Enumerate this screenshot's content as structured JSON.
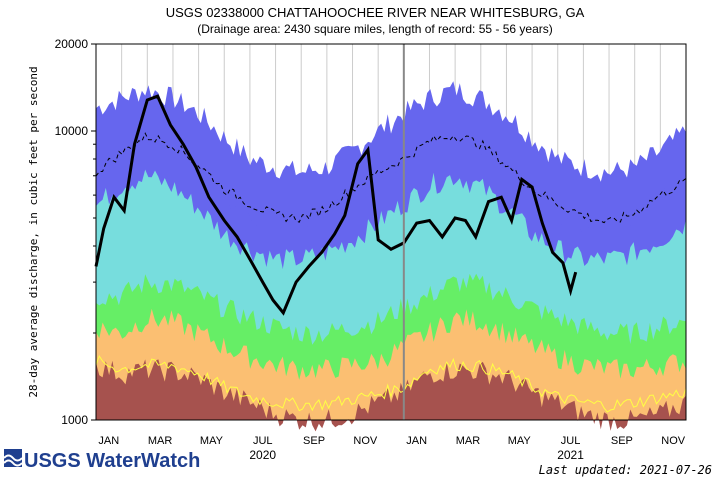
{
  "chart_data": {
    "type": "area",
    "title": "USGS 02338000 CHATTAHOOCHEE RIVER NEAR WHITESBURG, GA",
    "subtitle": "(Drainage area: 2430 square miles, length of record: 55 - 56 years)",
    "ylabel": "28-day average discharge, in cubic feet per second",
    "yscale": "log",
    "ylim": [
      1000,
      20000
    ],
    "y_ticks": [
      {
        "value": 1000,
        "label": "1000"
      },
      {
        "value": 10000,
        "label": "10000"
      },
      {
        "value": 20000,
        "label": "20000"
      }
    ],
    "x_range_months": [
      0,
      23
    ],
    "x_ticks": [
      {
        "label": "JAN",
        "pos": 0.5
      },
      {
        "label": "MAR",
        "pos": 2.5
      },
      {
        "label": "MAY",
        "pos": 4.5
      },
      {
        "label": "JUL",
        "pos": 6.5
      },
      {
        "label": "SEP",
        "pos": 8.5
      },
      {
        "label": "NOV",
        "pos": 10.5
      },
      {
        "label": "JAN",
        "pos": 12.5
      },
      {
        "label": "MAR",
        "pos": 14.5
      },
      {
        "label": "MAY",
        "pos": 16.5
      },
      {
        "label": "JUL",
        "pos": 18.5
      },
      {
        "label": "SEP",
        "pos": 20.5
      },
      {
        "label": "NOV",
        "pos": 22.5
      }
    ],
    "year_labels": [
      {
        "label": "2020",
        "pos": 6.5
      },
      {
        "label": "2021",
        "pos": 18.5
      }
    ],
    "year_divider": 12,
    "months": [
      0,
      1,
      2,
      3,
      4,
      5,
      6,
      7,
      8,
      9,
      10,
      11,
      12,
      13,
      14,
      15,
      16,
      17,
      18,
      19,
      20,
      21,
      22,
      23
    ],
    "percentile_bands": [
      {
        "name": "min-p10",
        "color": "#a6524e",
        "values": [
          1550,
          1450,
          1500,
          1480,
          1400,
          1250,
          1150,
          1050,
          1000,
          1000,
          1050,
          1150,
          1250,
          1450,
          1500,
          1480,
          1400,
          1250,
          1150,
          1050,
          1000,
          1000,
          1050,
          1150
        ]
      },
      {
        "name": "p10-p25",
        "color": "#fbbf72",
        "values": [
          2100,
          2000,
          2250,
          2200,
          2000,
          1800,
          1650,
          1550,
          1500,
          1500,
          1550,
          1600,
          1800,
          2000,
          2250,
          2200,
          2000,
          1800,
          1650,
          1550,
          1500,
          1500,
          1550,
          1600
        ]
      },
      {
        "name": "p25-p75",
        "color": "#66ee66",
        "values": [
          2700,
          2700,
          3000,
          2950,
          2700,
          2450,
          2250,
          2100,
          2000,
          2000,
          2100,
          2200,
          2450,
          2700,
          3000,
          2950,
          2700,
          2450,
          2250,
          2100,
          2000,
          2000,
          2100,
          2200
        ]
      },
      {
        "name": "p75-p90",
        "color": "#77dddd",
        "values": [
          5500,
          6500,
          7000,
          6400,
          5400,
          4400,
          3900,
          3600,
          3600,
          3800,
          4200,
          4800,
          5600,
          6500,
          7000,
          6400,
          5400,
          4400,
          3900,
          3600,
          3600,
          3800,
          4200,
          4800
        ]
      },
      {
        "name": "p90-max",
        "color": "#6666ee",
        "values": [
          7800,
          9000,
          9500,
          8800,
          7500,
          6000,
          5200,
          4800,
          4700,
          5200,
          6000,
          6800,
          7600,
          9000,
          9500,
          8800,
          7500,
          6000,
          5200,
          4800,
          4700,
          5200,
          6000,
          6800
        ]
      },
      {
        "name": "max",
        "color": "#6666ee",
        "values": [
          12000,
          13000,
          14000,
          13000,
          11500,
          9500,
          8000,
          7500,
          7200,
          7500,
          8500,
          10000,
          11500,
          13000,
          14000,
          13000,
          11500,
          9500,
          8000,
          7500,
          7200,
          7500,
          8500,
          10000
        ]
      }
    ],
    "series": [
      {
        "name": "28-day average discharge",
        "color": "#000000",
        "x": [
          0,
          0.3,
          0.7,
          1.1,
          1.5,
          2.0,
          2.4,
          2.9,
          3.4,
          3.9,
          4.4,
          5.0,
          5.5,
          6.0,
          6.5,
          6.9,
          7.3,
          7.8,
          8.3,
          8.8,
          9.3,
          9.7,
          10.2,
          10.6,
          11.0,
          11.5,
          12.0,
          12.5,
          13.0,
          13.5,
          14.0,
          14.4,
          14.8,
          15.3,
          15.8,
          16.2,
          16.6,
          17.0,
          17.4,
          17.8,
          18.2,
          18.5,
          18.7
        ],
        "values": [
          3400,
          4600,
          5900,
          5300,
          9000,
          12800,
          13200,
          10500,
          9000,
          7500,
          5900,
          4900,
          4300,
          3600,
          3000,
          2600,
          2350,
          3000,
          3400,
          3800,
          4400,
          5100,
          7700,
          8600,
          4200,
          3900,
          4100,
          4800,
          4900,
          4300,
          5000,
          4900,
          4300,
          5700,
          5900,
          4900,
          6800,
          6400,
          4800,
          3800,
          3500,
          2800,
          3250
        ]
      },
      {
        "name": "median (dashed)",
        "color": "#000000",
        "dashed": true,
        "values": [
          7200,
          8400,
          9600,
          9000,
          7600,
          6300,
          5600,
          5100,
          5000,
          5400,
          6300,
          7200,
          8000,
          9200,
          9700,
          9000,
          7600,
          6300,
          5600,
          5100,
          4800,
          5200,
          6000,
          6700
        ]
      },
      {
        "name": "low trace",
        "color": "#ffff44",
        "values": [
          1600,
          1500,
          1550,
          1540,
          1450,
          1300,
          1200,
          1150,
          1130,
          1140,
          1180,
          1230,
          1300,
          1500,
          1560,
          1530,
          1450,
          1300,
          1200,
          1150,
          1120,
          1150,
          1200,
          1250
        ]
      }
    ]
  },
  "footer": {
    "logo_text": "USGS WaterWatch",
    "last_updated": "Last updated: 2021-07-26"
  }
}
